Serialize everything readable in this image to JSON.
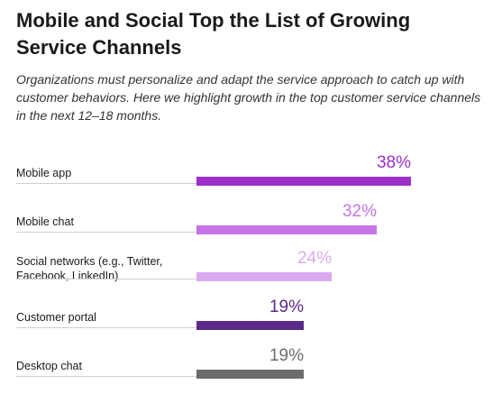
{
  "title": "Mobile and Social Top the List of Growing Service Channels",
  "subtitle": "Organizations must personalize and adapt the service approach to catch up with customer behaviors. Here we highlight growth in the top customer service channels in the next 12–18 months.",
  "chart_data": {
    "type": "bar",
    "orientation": "horizontal",
    "categories": [
      "Mobile app",
      "Mobile chat",
      "Social networks (e.g., Twitter, Facebook, LinkedIn)",
      "Customer portal",
      "Desktop chat"
    ],
    "category_lines": [
      [
        "Mobile app"
      ],
      [
        "Mobile chat"
      ],
      [
        "Social networks (e.g., Twitter,",
        "Facebook, LinkedIn)"
      ],
      [
        "Customer portal"
      ],
      [
        "Desktop chat"
      ]
    ],
    "values": [
      38,
      32,
      24,
      19,
      19
    ],
    "value_labels": [
      "38%",
      "32%",
      "24%",
      "19%",
      "19%"
    ],
    "bar_colors": [
      "#9b30c8",
      "#c673e6",
      "#dcaaf0",
      "#5a2a86",
      "#6b6b6b"
    ],
    "label_colors": [
      "#9b30c8",
      "#c673e6",
      "#dcaaf0",
      "#5a2a86",
      "#6b6b6b"
    ],
    "xlim": [
      0,
      38
    ],
    "grid": false,
    "legend": "none"
  }
}
